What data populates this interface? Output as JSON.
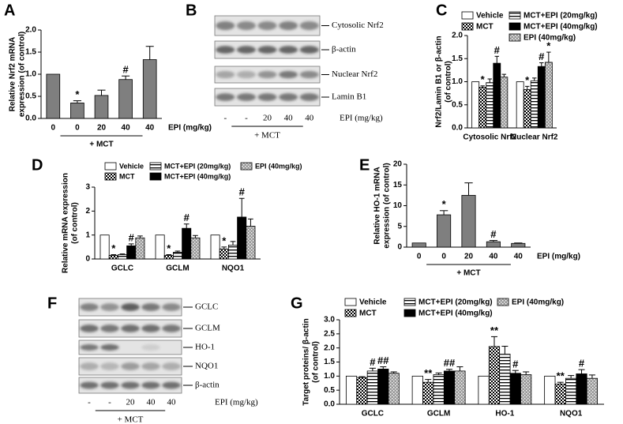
{
  "chart_data": [
    {
      "panel": "A",
      "type": "bar",
      "y_label": [
        "Relative Nrf2 mRNA",
        "expression (of control)"
      ],
      "categories": [
        "0",
        "0",
        "20",
        "40",
        "40"
      ],
      "x_label": "EPI (mg/kg)",
      "group_label": "+ MCT",
      "values": [
        1.0,
        0.35,
        0.52,
        0.88,
        1.33
      ],
      "errors": [
        0,
        0.05,
        0.12,
        0.08,
        0.3
      ],
      "annotations": [
        null,
        "*",
        null,
        "#",
        null
      ],
      "color": "#7f7f7f",
      "ylim": [
        0,
        2
      ],
      "yticks": [
        {
          "value": 0,
          "label": "0.0"
        },
        {
          "value": 0.5,
          "label": "0.5"
        },
        {
          "value": 1,
          "label": "1.0"
        },
        {
          "value": 1.5,
          "label": "1.5"
        },
        {
          "value": 2,
          "label": "2.0"
        }
      ]
    },
    {
      "panel": "C",
      "type": "bar",
      "y_label": [
        "Nrf2/Lamin B1 or β-actin",
        "(of control)"
      ],
      "categories": [
        "Cytosolic Nrf2",
        "Nuclear Nrf2"
      ],
      "series": [
        {
          "name": "Vehicle",
          "color": "#ffffff",
          "pattern": "none",
          "values": [
            1.0,
            1.0
          ],
          "errors": [
            0,
            0
          ],
          "annotations": [
            null,
            null
          ]
        },
        {
          "name": "MCT",
          "color": "#ffffff",
          "pattern": "checker",
          "values": [
            0.88,
            0.83
          ],
          "errors": [
            0.03,
            0.07
          ],
          "annotations": [
            "*",
            "*"
          ]
        },
        {
          "name": "MCT+EPI (20mg/kg)",
          "color": "#ffffff",
          "pattern": "horizontal",
          "values": [
            0.98,
            1.02
          ],
          "errors": [
            0.08,
            0.06
          ],
          "annotations": [
            null,
            null
          ]
        },
        {
          "name": "MCT+EPI (40mg/kg)",
          "color": "#000000",
          "pattern": "none",
          "values": [
            1.4,
            1.33
          ],
          "errors": [
            0.15,
            0.08
          ],
          "annotations": [
            "#",
            "#"
          ]
        },
        {
          "name": "EPI (40mg/kg)",
          "color": "#9a9a9a",
          "pattern": "dots",
          "values": [
            1.1,
            1.42
          ],
          "errors": [
            0.06,
            0.22
          ],
          "annotations": [
            null,
            "*"
          ]
        }
      ],
      "ylim": [
        0,
        2
      ],
      "yticks": [
        {
          "value": 0,
          "label": "0.0"
        },
        {
          "value": 0.5,
          "label": "0.5"
        },
        {
          "value": 1,
          "label": "1.0"
        },
        {
          "value": 1.5,
          "label": "1.5"
        },
        {
          "value": 2,
          "label": "2.0"
        }
      ]
    },
    {
      "panel": "D",
      "type": "bar",
      "y_label": [
        "Relative mRNA expression",
        "(of control)"
      ],
      "categories": [
        "GCLC",
        "GCLM",
        "NQO1"
      ],
      "series": [
        {
          "name": "Vehicle",
          "color": "#ffffff",
          "pattern": "none",
          "values": [
            1.0,
            1.0,
            1.0
          ],
          "errors": [
            0,
            0,
            0
          ],
          "annotations": [
            null,
            null,
            null
          ]
        },
        {
          "name": "MCT",
          "color": "#ffffff",
          "pattern": "checker",
          "values": [
            0.15,
            0.15,
            0.42
          ],
          "errors": [
            0.03,
            0.03,
            0.08
          ],
          "annotations": [
            "*",
            "*",
            "*"
          ]
        },
        {
          "name": "MCT+EPI (20mg/kg)",
          "color": "#ffffff",
          "pattern": "horizontal",
          "values": [
            0.18,
            0.28,
            0.58
          ],
          "errors": [
            0.03,
            0.05,
            0.15
          ],
          "annotations": [
            null,
            null,
            null
          ]
        },
        {
          "name": "MCT+EPI (40mg/kg)",
          "color": "#000000",
          "pattern": "none",
          "values": [
            0.55,
            1.28,
            1.75
          ],
          "errors": [
            0.08,
            0.18,
            0.78
          ],
          "annotations": [
            "#",
            "#",
            "#"
          ]
        },
        {
          "name": "EPI (40mg/kg)",
          "color": "#9a9a9a",
          "pattern": "dots",
          "values": [
            0.88,
            0.88,
            1.37
          ],
          "errors": [
            0.08,
            0.1,
            0.3
          ],
          "annotations": [
            null,
            null,
            null
          ]
        }
      ],
      "ylim": [
        0,
        3
      ],
      "yticks": [
        0,
        1,
        2,
        3
      ]
    },
    {
      "panel": "E",
      "type": "bar",
      "y_label": [
        "Relative HO-1 mRNA",
        "expression (of control)"
      ],
      "categories": [
        "0",
        "0",
        "20",
        "40",
        "40"
      ],
      "x_label": "EPI (mg/kg)",
      "group_label": "+ MCT",
      "values": [
        1.0,
        7.8,
        12.5,
        1.3,
        0.9
      ],
      "errors": [
        0,
        1.0,
        3.0,
        0.3,
        0.1
      ],
      "annotations": [
        null,
        "*",
        null,
        "#",
        null
      ],
      "color": "#7f7f7f",
      "ylim": [
        0,
        20
      ],
      "yticks": [
        0,
        5,
        10,
        15,
        20
      ]
    },
    {
      "panel": "G",
      "type": "bar",
      "y_label": [
        "Target proteins/ β-actin",
        "(of control)"
      ],
      "categories": [
        "GCLC",
        "GCLM",
        "HO-1",
        "NQO1"
      ],
      "series": [
        {
          "name": "Vehicle",
          "color": "#ffffff",
          "pattern": "none",
          "values": [
            1.0,
            1.0,
            1.0,
            1.0
          ],
          "errors": [
            0,
            0,
            0,
            0
          ],
          "annotations": [
            null,
            null,
            null,
            null
          ]
        },
        {
          "name": "MCT",
          "color": "#ffffff",
          "pattern": "checker",
          "values": [
            0.95,
            0.78,
            2.05,
            0.72
          ],
          "errors": [
            0.03,
            0.1,
            0.35,
            0.06
          ],
          "annotations": [
            null,
            "**",
            "**",
            "**"
          ]
        },
        {
          "name": "MCT+EPI (20mg/kg)",
          "color": "#ffffff",
          "pattern": "horizontal",
          "values": [
            1.18,
            1.05,
            1.78,
            0.92
          ],
          "errors": [
            0.1,
            0.06,
            0.28,
            0.1
          ],
          "annotations": [
            "#",
            null,
            null,
            null
          ]
        },
        {
          "name": "MCT+EPI (40mg/kg)",
          "color": "#000000",
          "pattern": "none",
          "values": [
            1.25,
            1.18,
            1.1,
            1.08
          ],
          "errors": [
            0.08,
            0.06,
            0.1,
            0.15
          ],
          "annotations": [
            "##",
            "##",
            "#",
            "#"
          ]
        },
        {
          "name": "EPI (40mg/kg)",
          "color": "#9a9a9a",
          "pattern": "dots",
          "values": [
            1.1,
            1.18,
            1.05,
            0.92
          ],
          "errors": [
            0.05,
            0.15,
            0.1,
            0.12
          ],
          "annotations": [
            null,
            null,
            null,
            null
          ]
        }
      ],
      "ylim": [
        0,
        3
      ],
      "yticks": [
        {
          "value": 0,
          "label": "0.0"
        },
        {
          "value": 0.5,
          "label": "0.5"
        },
        {
          "value": 1,
          "label": "1.0"
        },
        {
          "value": 1.5,
          "label": "1.5"
        },
        {
          "value": 2,
          "label": "2.0"
        },
        {
          "value": 2.5,
          "label": "2.5"
        },
        {
          "value": 3,
          "label": "3.0"
        }
      ]
    }
  ],
  "blots": [
    {
      "panel": "B",
      "rows": [
        "Cytosolic Nrf2",
        "β-actin",
        "Nuclear Nrf2",
        "Lamin B1"
      ],
      "lanes": [
        "-",
        "-",
        "20",
        "40",
        "40"
      ],
      "dose_label": "EPI (mg/kg)",
      "group_label": "+ MCT"
    },
    {
      "panel": "F",
      "rows": [
        "GCLC",
        "GCLM",
        "HO-1",
        "NQO1",
        "β-actin"
      ],
      "lanes": [
        "-",
        "-",
        "20",
        "40",
        "40"
      ],
      "dose_label": "EPI (mg/kg)",
      "group_label": "+ MCT"
    }
  ]
}
